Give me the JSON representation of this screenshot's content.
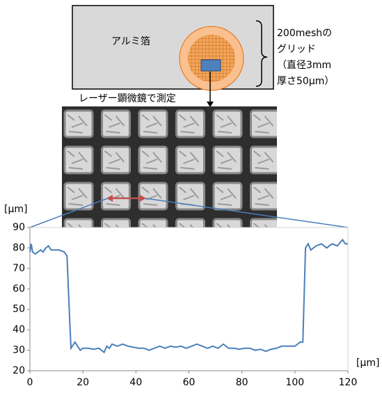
{
  "diagram": {
    "foil_label": "アルミ箔",
    "grid_label": [
      "200meshの",
      "グリッド",
      "（直径3mm",
      " 厚さ50µm）"
    ],
    "arrow_label": "レーザー顕微鏡で測定"
  },
  "chart_data": {
    "type": "line",
    "y_label": "[µm]",
    "x_label": "[µm]",
    "color": "#4a7ebb",
    "x": [
      0,
      0.5,
      1,
      2,
      3,
      4,
      5,
      6,
      7,
      8,
      9,
      10,
      11,
      12,
      13,
      14,
      15,
      15.5,
      16,
      17,
      18,
      19,
      20,
      22,
      24,
      26,
      28,
      29,
      30,
      31,
      33,
      35,
      37,
      39,
      41,
      43,
      45,
      47,
      49,
      51,
      53,
      55,
      57,
      59,
      61,
      63,
      65,
      67,
      69,
      71,
      73,
      75,
      77,
      79,
      81,
      83,
      85,
      87,
      89,
      91,
      93,
      95,
      97,
      99,
      100,
      101,
      102,
      103,
      104,
      105,
      106,
      108,
      110,
      112,
      114,
      116,
      118,
      119,
      120
    ],
    "values": [
      78,
      82,
      78,
      77,
      78,
      79,
      78,
      80,
      81,
      79,
      79,
      79,
      79,
      78.5,
      78,
      76,
      45,
      31,
      32,
      34,
      32,
      30,
      31,
      31,
      30.5,
      31,
      29,
      32,
      31,
      33,
      32,
      33,
      32,
      31.5,
      31,
      31,
      30,
      31,
      32,
      31,
      32,
      31.5,
      32,
      31,
      32,
      33,
      32,
      31,
      32,
      31,
      33,
      31,
      31,
      30.5,
      31,
      31,
      30,
      30.5,
      29.5,
      30.5,
      31,
      32,
      32,
      32,
      32,
      33,
      34,
      34,
      80,
      82,
      79,
      81,
      82,
      80,
      82,
      81,
      84,
      82,
      82
    ],
    "xlim": [
      0,
      120
    ],
    "xticks": [
      0,
      20,
      40,
      60,
      80,
      100,
      120
    ],
    "ylim": [
      20,
      90
    ],
    "yticks": [
      20,
      30,
      40,
      50,
      60,
      70,
      80,
      90
    ]
  }
}
